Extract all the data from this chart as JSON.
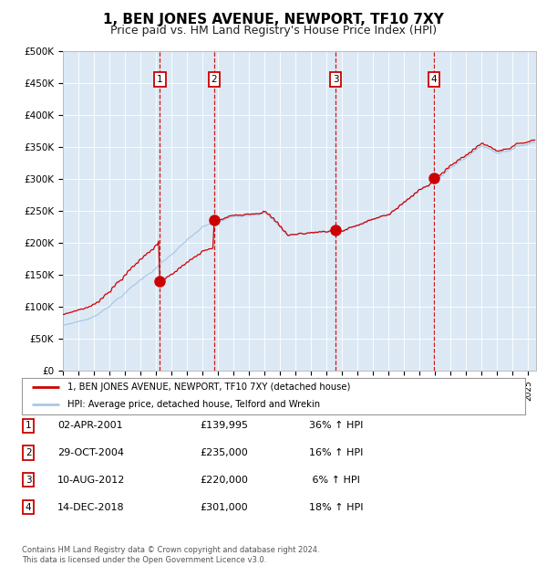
{
  "title": "1, BEN JONES AVENUE, NEWPORT, TF10 7XY",
  "subtitle": "Price paid vs. HM Land Registry's House Price Index (HPI)",
  "title_fontsize": 11,
  "subtitle_fontsize": 9,
  "background_color": "#ffffff",
  "plot_bg_color": "#dce9f5",
  "ylim": [
    0,
    500000
  ],
  "yticks": [
    0,
    50000,
    100000,
    150000,
    200000,
    250000,
    300000,
    350000,
    400000,
    450000,
    500000
  ],
  "ytick_labels": [
    "£0",
    "£50K",
    "£100K",
    "£150K",
    "£200K",
    "£250K",
    "£300K",
    "£350K",
    "£400K",
    "£450K",
    "£500K"
  ],
  "x_start_year": 1995,
  "x_end_year": 2025,
  "hpi_color": "#a8c8e8",
  "price_color": "#cc0000",
  "marker_color": "#cc0000",
  "sale_year_floats": [
    2001.25,
    2004.75,
    2012.583,
    2018.917
  ],
  "sale_prices": [
    139995,
    235000,
    220000,
    301000
  ],
  "sale_labels": [
    "1",
    "2",
    "3",
    "4"
  ],
  "legend_price_label": "1, BEN JONES AVENUE, NEWPORT, TF10 7XY (detached house)",
  "legend_hpi_label": "HPI: Average price, detached house, Telford and Wrekin",
  "table_entries": [
    {
      "label": "1",
      "date": "02-APR-2001",
      "price": "£139,995",
      "pct": "36% ↑ HPI"
    },
    {
      "label": "2",
      "date": "29-OCT-2004",
      "price": "£235,000",
      "pct": "16% ↑ HPI"
    },
    {
      "label": "3",
      "date": "10-AUG-2012",
      "price": "£220,000",
      "pct": " 6% ↑ HPI"
    },
    {
      "label": "4",
      "date": "14-DEC-2018",
      "price": "£301,000",
      "pct": "18% ↑ HPI"
    }
  ],
  "footnote": "Contains HM Land Registry data © Crown copyright and database right 2024.\nThis data is licensed under the Open Government Licence v3.0.",
  "dashed_line_color": "#cc0000",
  "box_color": "#cc0000"
}
